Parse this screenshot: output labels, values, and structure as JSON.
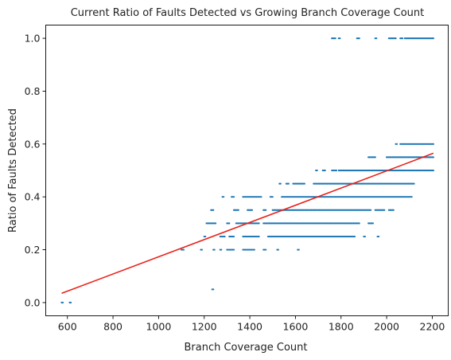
{
  "chart_data": {
    "type": "scatter",
    "title": "Current Ratio of Faults Detected vs Growing Branch Coverage Count",
    "xlabel": "Branch Coverage Count",
    "ylabel": "Ratio of Faults Detected",
    "xlim": [
      505,
      2270
    ],
    "ylim": [
      -0.05,
      1.05
    ],
    "x_ticks": [
      600,
      800,
      1000,
      1200,
      1400,
      1600,
      1800,
      2000,
      2200
    ],
    "y_ticks": [
      0.0,
      0.2,
      0.4,
      0.6,
      0.8,
      1.0
    ],
    "tick_labels_x": [
      "600",
      "800",
      "1000",
      "1200",
      "1400",
      "1600",
      "1800",
      "2000",
      "2200"
    ],
    "tick_labels_y": [
      "0.0",
      "0.2",
      "0.4",
      "0.6",
      "0.8",
      "1.0"
    ],
    "grid": false,
    "colors": {
      "points": "#1f77b4",
      "trend": "#e8231b"
    },
    "trend_line": {
      "x": [
        575,
        2205
      ],
      "y": [
        0.035,
        0.565
      ]
    },
    "series": [
      {
        "levels": [
          {
            "y": 0.0,
            "segments": [
              [
                575,
                580
              ],
              [
                610,
                615
              ]
            ]
          },
          {
            "y": 0.05,
            "segments": [
              [
                1235,
                1240
              ]
            ]
          },
          {
            "y": 0.2,
            "segments": [
              [
                1100,
                1110
              ],
              [
                1185,
                1190
              ],
              [
                1240,
                1245
              ],
              [
                1270,
                1275
              ],
              [
                1300,
                1330
              ],
              [
                1370,
                1420
              ],
              [
                1460,
                1470
              ],
              [
                1520,
                1525
              ],
              [
                1610,
                1615
              ]
            ]
          },
          {
            "y": 0.25,
            "segments": [
              [
                1200,
                1205
              ],
              [
                1270,
                1290
              ],
              [
                1310,
                1330
              ],
              [
                1370,
                1440
              ],
              [
                1480,
                1860
              ],
              [
                1900,
                1905
              ],
              [
                1960,
                1965
              ]
            ]
          },
          {
            "y": 0.3,
            "segments": [
              [
                1210,
                1250
              ],
              [
                1300,
                1310
              ],
              [
                1340,
                1440
              ],
              [
                1460,
                1880
              ],
              [
                1920,
                1940
              ]
            ]
          },
          {
            "y": 0.35,
            "segments": [
              [
                1230,
                1240
              ],
              [
                1330,
                1350
              ],
              [
                1390,
                1410
              ],
              [
                1460,
                1470
              ],
              [
                1500,
                1930
              ],
              [
                1950,
                1990
              ],
              [
                2010,
                2030
              ]
            ]
          },
          {
            "y": 0.4,
            "segments": [
              [
                1280,
                1285
              ],
              [
                1320,
                1330
              ],
              [
                1370,
                1450
              ],
              [
                1490,
                1500
              ],
              [
                1540,
                2110
              ]
            ]
          },
          {
            "y": 0.45,
            "segments": [
              [
                1530,
                1535
              ],
              [
                1560,
                1570
              ],
              [
                1590,
                1640
              ],
              [
                1680,
                2120
              ]
            ]
          },
          {
            "y": 0.5,
            "segments": [
              [
                1690,
                1695
              ],
              [
                1720,
                1730
              ],
              [
                1760,
                1780
              ],
              [
                1790,
                2205
              ]
            ]
          },
          {
            "y": 0.55,
            "segments": [
              [
                1920,
                1950
              ],
              [
                2000,
                2205
              ]
            ]
          },
          {
            "y": 0.6,
            "segments": [
              [
                2040,
                2045
              ],
              [
                2060,
                2205
              ]
            ]
          },
          {
            "y": 1.0,
            "segments": [
              [
                1760,
                1775
              ],
              [
                1790,
                1795
              ],
              [
                1870,
                1880
              ],
              [
                1950,
                1955
              ],
              [
                2010,
                2040
              ],
              [
                2060,
                2070
              ],
              [
                2080,
                2205
              ]
            ]
          }
        ],
        "point_step": 5
      }
    ]
  }
}
